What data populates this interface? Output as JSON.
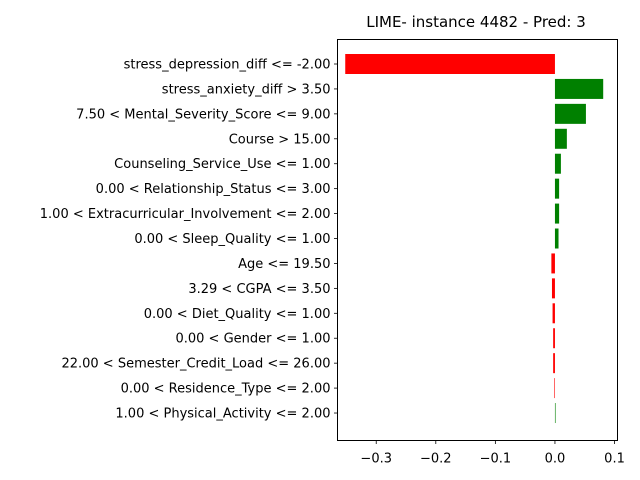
{
  "chart_data": {
    "type": "bar",
    "orientation": "horizontal",
    "title": "LIME- instance 4482 - Pred: 3",
    "xlabel": "",
    "ylabel": "",
    "xlim": [
      -0.365,
      0.105
    ],
    "xticks": [
      -0.3,
      -0.2,
      -0.1,
      0.0,
      0.1
    ],
    "xtick_labels": [
      "−0.3",
      "−0.2",
      "−0.1",
      "0.0",
      "0.1"
    ],
    "grid": false,
    "legend": "none",
    "positive_color": "#008000",
    "negative_color": "#ff0000",
    "categories": [
      "stress_depression_diff <= -2.00",
      "stress_anxiety_diff > 3.50",
      "7.50 < Mental_Severity_Score <= 9.00",
      "Course > 15.00",
      "Counseling_Service_Use <= 1.00",
      "0.00 < Relationship_Status <= 3.00",
      "1.00 < Extracurricular_Involvement <= 2.00",
      "0.00 < Sleep_Quality <= 1.00",
      "Age <= 19.50",
      "3.29 < CGPA <= 3.50",
      "0.00 < Diet_Quality <= 1.00",
      "0.00 < Gender <= 1.00",
      "22.00 < Semester_Credit_Load <= 26.00",
      "0.00 < Residence_Type <= 2.00",
      "1.00 < Physical_Activity <= 2.00"
    ],
    "values": [
      -0.352,
      0.081,
      0.052,
      0.02,
      0.01,
      0.007,
      0.007,
      0.006,
      -0.006,
      -0.005,
      -0.004,
      -0.003,
      -0.003,
      -0.001,
      0.0
    ]
  }
}
